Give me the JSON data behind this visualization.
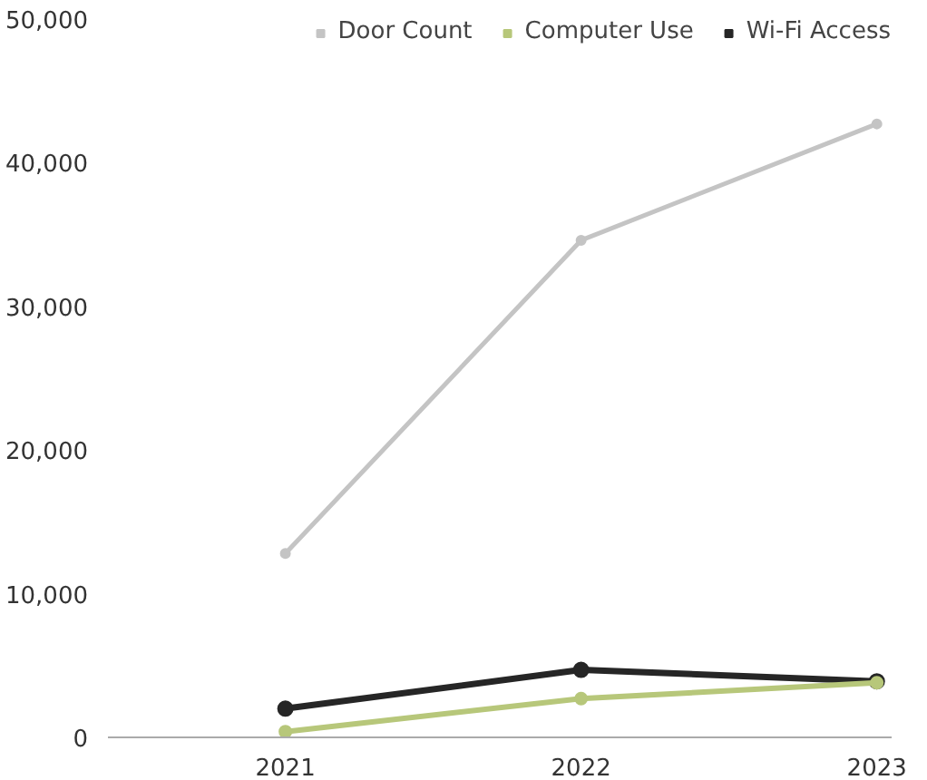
{
  "chart_data": {
    "type": "line",
    "categories": [
      "2021",
      "2022",
      "2023"
    ],
    "series": [
      {
        "name": "Door Count",
        "color": "#c4c4c4",
        "values": [
          12800,
          34600,
          42700
        ]
      },
      {
        "name": "Computer Use",
        "color": "#b7c77a",
        "values": [
          400,
          2700,
          3800
        ]
      },
      {
        "name": "Wi-Fi Access",
        "color": "#262626",
        "values": [
          2000,
          4700,
          3900
        ]
      }
    ],
    "ylim": [
      0,
      50000
    ],
    "yticks": [
      {
        "value": 0,
        "label": "0"
      },
      {
        "value": 10000,
        "label": "10,000"
      },
      {
        "value": 20000,
        "label": "20,000"
      },
      {
        "value": 30000,
        "label": "30,000"
      },
      {
        "value": 40000,
        "label": "40,000"
      },
      {
        "value": 50000,
        "label": "50,000"
      }
    ],
    "grid": false,
    "legend": "top right",
    "marker": "circle"
  }
}
